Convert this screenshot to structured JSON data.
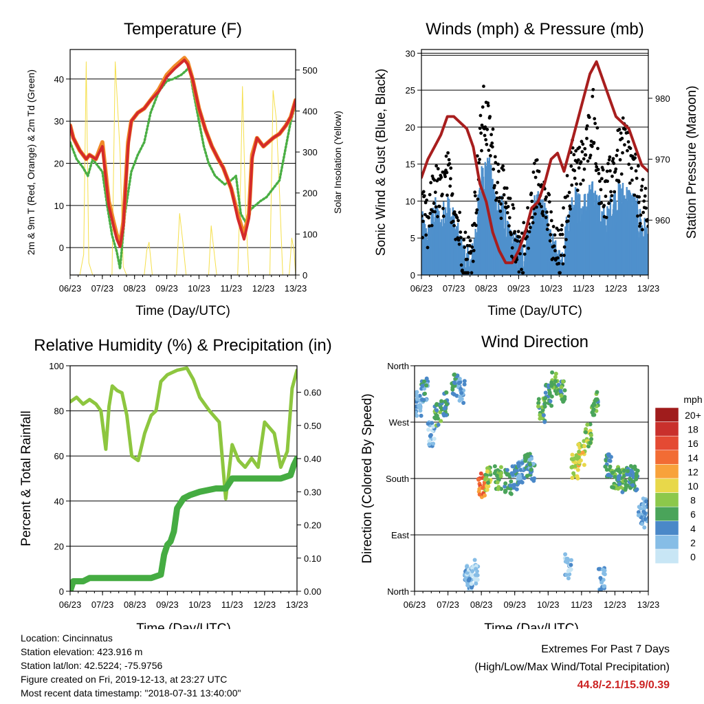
{
  "chart_data": [
    {
      "type": "line",
      "title": "Temperature (F)",
      "xlabel": "Time (Day/UTC)",
      "ylabel": "2m & 9m T (Red, Orange) & 2m Td (Green)",
      "y2label": "Solar Insolation (Yellow)",
      "xticks": [
        "06/23",
        "07/23",
        "08/23",
        "09/23",
        "10/23",
        "11/23",
        "12/23",
        "13/23"
      ],
      "yticks": [
        0,
        10,
        20,
        30,
        40
      ],
      "y2ticks": [
        0,
        100,
        200,
        300,
        400,
        500
      ],
      "ylim": [
        -6.5,
        47
      ],
      "y2lim": [
        0,
        550
      ],
      "xlim": [
        6,
        13
      ],
      "series": [
        {
          "color": "#f08a28",
          "x": [
            6,
            6.1,
            6.3,
            6.5,
            6.6,
            6.8,
            7.0,
            7.2,
            7.35,
            7.45,
            7.55,
            7.65,
            7.8,
            7.9,
            8.1,
            8.3,
            8.5,
            8.75,
            9.0,
            9.25,
            9.4,
            9.55,
            9.65,
            9.8,
            10.0,
            10.2,
            10.4,
            10.6,
            10.75,
            10.9,
            11.0,
            11.2,
            11.4,
            11.55,
            11.65,
            11.8,
            12.0,
            12.3,
            12.5,
            12.7,
            12.85,
            13.0
          ],
          "y": [
            29,
            26,
            23,
            21,
            22,
            21,
            25,
            11,
            6,
            3,
            0.8,
            6,
            25,
            30,
            32,
            33,
            35,
            37.5,
            41,
            43,
            44,
            45,
            44,
            40,
            33,
            28,
            24,
            21,
            19,
            16,
            14,
            8,
            3,
            8,
            22,
            26,
            24,
            26,
            27,
            29,
            31,
            35
          ]
        },
        {
          "color": "#d42a2a",
          "x": [
            6,
            6.1,
            6.3,
            6.5,
            6.6,
            6.8,
            7.0,
            7.2,
            7.35,
            7.45,
            7.55,
            7.65,
            7.8,
            7.9,
            8.1,
            8.3,
            8.5,
            8.75,
            9.0,
            9.25,
            9.4,
            9.55,
            9.65,
            9.8,
            10.0,
            10.2,
            10.4,
            10.6,
            10.75,
            10.9,
            11.0,
            11.2,
            11.4,
            11.55,
            11.65,
            11.8,
            12.0,
            12.3,
            12.5,
            12.7,
            12.85,
            13.0
          ],
          "y": [
            29,
            26,
            23,
            21,
            22,
            21,
            24,
            10,
            5,
            2,
            0.2,
            5,
            24,
            30,
            32,
            33,
            35,
            37,
            40.5,
            42.5,
            43.5,
            44.5,
            43.5,
            40,
            33,
            28,
            24,
            21,
            19,
            16,
            14,
            7,
            2,
            7,
            21,
            26,
            24,
            26,
            27,
            29,
            31,
            35
          ]
        },
        {
          "color": "#4aae44",
          "x": [
            6,
            6.2,
            6.4,
            6.55,
            6.7,
            6.9,
            7.0,
            7.15,
            7.3,
            7.45,
            7.55,
            7.7,
            7.9,
            8.1,
            8.3,
            8.5,
            8.75,
            9.0,
            9.2,
            9.45,
            9.6,
            9.7,
            9.8,
            10.0,
            10.15,
            10.3,
            10.5,
            10.65,
            10.8,
            11.0,
            11.15,
            11.3,
            11.45,
            11.6,
            11.75,
            11.9,
            12.1,
            12.3,
            12.5,
            12.7,
            12.85,
            13.0
          ],
          "y": [
            25,
            21,
            19,
            17,
            21,
            19,
            18,
            10,
            3,
            -1,
            -5,
            8,
            18,
            22,
            25,
            32,
            37,
            39.5,
            40,
            41,
            42,
            43,
            38,
            30,
            24,
            20,
            17,
            16,
            15,
            16,
            17,
            8,
            6,
            9,
            10,
            11,
            12,
            14,
            16,
            24,
            30,
            34
          ]
        },
        {
          "color": "#f5df4a",
          "axis": "y2",
          "x": [
            6.3,
            6.42,
            6.5,
            6.58,
            6.7,
            7.3,
            7.4,
            7.55,
            7.65,
            7.75,
            8.3,
            8.38,
            8.45,
            8.55,
            9.3,
            9.4,
            9.5,
            9.6,
            10.3,
            10.38,
            10.45,
            10.55,
            11.2,
            11.3,
            11.35,
            11.45,
            11.55,
            12.2,
            12.3,
            12.4,
            12.5,
            12.6,
            12.8,
            12.88,
            12.95,
            13.0
          ],
          "y": [
            0,
            50,
            520,
            30,
            0,
            0,
            520,
            300,
            20,
            0,
            0,
            60,
            80,
            0,
            0,
            150,
            80,
            0,
            0,
            120,
            70,
            0,
            0,
            250,
            460,
            150,
            0,
            0,
            450,
            380,
            200,
            0,
            0,
            90,
            60,
            0
          ]
        }
      ]
    },
    {
      "type": "scatter",
      "title": "Winds (mph) & Pressure (mb)",
      "xlabel": "Time (Day/UTC)",
      "ylabel": "Sonic Wind & Gust (Blue, Black)",
      "y2label": "Station Pressure (Maroon)",
      "xticks": [
        "06/23",
        "07/23",
        "08/23",
        "09/23",
        "10/23",
        "11/23",
        "12/23",
        "13/23"
      ],
      "yticks": [
        0,
        5,
        10,
        15,
        20,
        25,
        30
      ],
      "y2ticks": [
        960,
        970,
        980
      ],
      "ylim": [
        0,
        30.5
      ],
      "y2lim": [
        951,
        988
      ],
      "xlim": [
        6,
        13
      ],
      "series": [
        {
          "name": "wind",
          "color": "#4f90cc",
          "x": [
            6,
            6.2,
            6.4,
            6.6,
            6.8,
            7.0,
            7.2,
            7.4,
            7.55,
            7.75,
            7.9,
            8.1,
            8.3,
            8.5,
            8.7,
            8.9,
            9.1,
            9.3,
            9.5,
            9.7,
            9.9,
            10.1,
            10.3,
            10.5,
            10.7,
            10.9,
            11.1,
            11.3,
            11.5,
            11.7,
            11.9,
            12.1,
            12.3,
            12.5,
            12.7,
            12.9,
            13.0
          ],
          "y": [
            6,
            4,
            8,
            6,
            9,
            6,
            3,
            1,
            1,
            8,
            14,
            13,
            9,
            8,
            4,
            3,
            2,
            4,
            8,
            9,
            5,
            2,
            1,
            6,
            10,
            8,
            9,
            10,
            8,
            6,
            9,
            10,
            10,
            9,
            7,
            5,
            4
          ]
        },
        {
          "name": "gust",
          "color": "#000000",
          "x": [
            6,
            6.2,
            6.4,
            6.6,
            6.8,
            7.0,
            7.2,
            7.4,
            7.55,
            7.75,
            7.9,
            8.1,
            8.3,
            8.5,
            8.7,
            8.9,
            9.1,
            9.3,
            9.5,
            9.7,
            9.9,
            10.1,
            10.3,
            10.5,
            10.7,
            10.9,
            11.1,
            11.3,
            11.5,
            11.7,
            11.9,
            12.1,
            12.3,
            12.5,
            12.7,
            12.9,
            13.0
          ],
          "y": [
            8,
            6,
            12,
            10,
            13,
            10,
            5,
            2,
            3,
            14,
            22,
            19,
            14,
            11,
            7,
            5,
            3,
            6,
            12,
            13,
            8,
            3,
            2,
            10,
            16,
            14,
            17,
            22,
            13,
            10,
            14,
            16,
            18,
            14,
            11,
            8,
            6
          ]
        },
        {
          "name": "pressure",
          "color": "#a81e1e",
          "axis": "y2",
          "x": [
            6,
            6.2,
            6.4,
            6.6,
            6.8,
            7.0,
            7.2,
            7.4,
            7.6,
            7.8,
            8.0,
            8.2,
            8.4,
            8.6,
            8.8,
            9.0,
            9.2,
            9.4,
            9.6,
            9.8,
            10.0,
            10.2,
            10.4,
            10.6,
            10.8,
            11.0,
            11.2,
            11.4,
            11.6,
            11.8,
            12.0,
            12.2,
            12.4,
            12.6,
            12.8,
            13.0
          ],
          "y": [
            967,
            970,
            972,
            974,
            977,
            977,
            976,
            975,
            972,
            966,
            963,
            958,
            955,
            953,
            953,
            955,
            958,
            962,
            963,
            966,
            970,
            971,
            968,
            972,
            976,
            980,
            984,
            986,
            983,
            980,
            977,
            976,
            975,
            972,
            969,
            968
          ]
        }
      ]
    },
    {
      "type": "line",
      "title": "Relative Humidity (%) & Precipitation (in)",
      "xlabel": "Time (Day/UTC)",
      "ylabel": "Percent & Total Rainfall",
      "xticks": [
        "06/23",
        "07/23",
        "08/23",
        "09/23",
        "10/23",
        "11/23",
        "12/23",
        "13/23"
      ],
      "yticks": [
        0,
        20,
        40,
        60,
        80,
        100
      ],
      "y2ticks": [
        "0.00",
        "0.10",
        "0.20",
        "0.30",
        "0.40",
        "0.50",
        "0.60"
      ],
      "ylim": [
        0,
        100
      ],
      "y2lim": [
        0,
        0.68
      ],
      "xlim": [
        6,
        13
      ],
      "series": [
        {
          "name": "rh",
          "color": "#8dc63f",
          "x": [
            6,
            6.2,
            6.4,
            6.6,
            6.8,
            6.95,
            7.1,
            7.2,
            7.3,
            7.45,
            7.6,
            7.75,
            7.9,
            8.1,
            8.3,
            8.5,
            8.65,
            8.8,
            9.0,
            9.3,
            9.6,
            9.8,
            10.0,
            10.3,
            10.6,
            10.8,
            11.0,
            11.2,
            11.4,
            11.6,
            11.8,
            12.0,
            12.3,
            12.5,
            12.7,
            12.85,
            13.0
          ],
          "y": [
            84,
            86,
            83,
            85,
            83,
            80,
            63,
            82,
            91,
            89,
            88,
            78,
            60,
            58,
            70,
            78,
            80,
            93,
            96,
            98,
            99,
            94,
            86,
            80,
            75,
            41,
            65,
            58,
            55,
            59,
            55,
            75,
            70,
            55,
            62,
            90,
            98
          ]
        },
        {
          "name": "precip",
          "color": "#45ac42",
          "axis": "y2",
          "x": [
            6,
            6.1,
            6.4,
            6.6,
            7.0,
            7.5,
            8.0,
            8.5,
            8.8,
            8.9,
            9.0,
            9.1,
            9.2,
            9.3,
            9.5,
            9.7,
            10.0,
            10.5,
            10.8,
            11.0,
            11.3,
            11.6,
            12.0,
            12.5,
            12.8,
            12.9,
            13.0
          ],
          "y": [
            0,
            0.03,
            0.03,
            0.04,
            0.04,
            0.04,
            0.04,
            0.04,
            0.05,
            0.11,
            0.14,
            0.15,
            0.18,
            0.25,
            0.28,
            0.29,
            0.3,
            0.31,
            0.31,
            0.34,
            0.34,
            0.34,
            0.34,
            0.34,
            0.35,
            0.38,
            0.4
          ]
        }
      ]
    },
    {
      "type": "scatter",
      "title": "Wind Direction",
      "xlabel": "Time (Day/UTC)",
      "ylabel": "Direction (Colored By Speed)",
      "xticks": [
        "06/23",
        "07/23",
        "08/23",
        "09/23",
        "10/23",
        "11/23",
        "12/23",
        "13/23"
      ],
      "yticks": [
        "North",
        "West",
        "South",
        "East",
        "North"
      ],
      "ylim": [
        0,
        360
      ],
      "xlim": [
        6,
        13
      ],
      "legend_title": "mph",
      "legend_labels": [
        "20+",
        "18",
        "16",
        "14",
        "12",
        "10",
        "8",
        "6",
        "4",
        "2",
        "0"
      ],
      "legend_colors": [
        "#a01c1c",
        "#c9302c",
        "#e44a33",
        "#f26c34",
        "#f8a23b",
        "#e8d84a",
        "#8cc84b",
        "#4aa45a",
        "#4a88c8",
        "#86bde6",
        "#c8e6f5"
      ],
      "series": [
        {
          "name": "clusters",
          "x": [
            6.1,
            6.3,
            6.5,
            6.7,
            6.9,
            7.2,
            7.4,
            7.6,
            7.65,
            7.8,
            8.0,
            8.2,
            8.5,
            8.8,
            9.0,
            9.2,
            9.4,
            9.5,
            9.8,
            10.0,
            10.2,
            10.4,
            10.6,
            10.8,
            11.0,
            11.2,
            11.4,
            11.6,
            11.8,
            12.0,
            12.2,
            12.4,
            12.6,
            12.8,
            12.95
          ],
          "y": [
            300,
            320,
            250,
            280,
            300,
            330,
            320,
            20,
            25,
            30,
            170,
            180,
            180,
            175,
            180,
            190,
            200,
            195,
            290,
            310,
            330,
            320,
            40,
            200,
            220,
            250,
            300,
            20,
            200,
            180,
            175,
            180,
            180,
            120,
            130
          ],
          "speed": [
            3,
            4,
            2,
            6,
            5,
            5,
            3,
            2,
            2,
            1,
            14,
            8,
            7,
            5,
            4,
            3,
            5,
            4,
            6,
            5,
            7,
            6,
            2,
            9,
            10,
            8,
            6,
            3,
            5,
            7,
            6,
            5,
            5,
            3,
            3
          ]
        }
      ]
    }
  ],
  "info": {
    "location": "Location: Cincinnatus",
    "elevation": "Station elevation: 423.916 m",
    "latlon": "Station lat/lon: 42.5224; -75.9756",
    "created": "Figure created on Fri, 2019-12-13, at 23:27 UTC",
    "recent": "Most recent data timestamp: \"2018-07-31 13:40:00\""
  },
  "extremes": {
    "title": "Extremes For Past 7 Days",
    "subtitle": "(High/Low/Max Wind/Total Precipitation)",
    "values": "44.8/-2.1/15.9/0.39"
  }
}
